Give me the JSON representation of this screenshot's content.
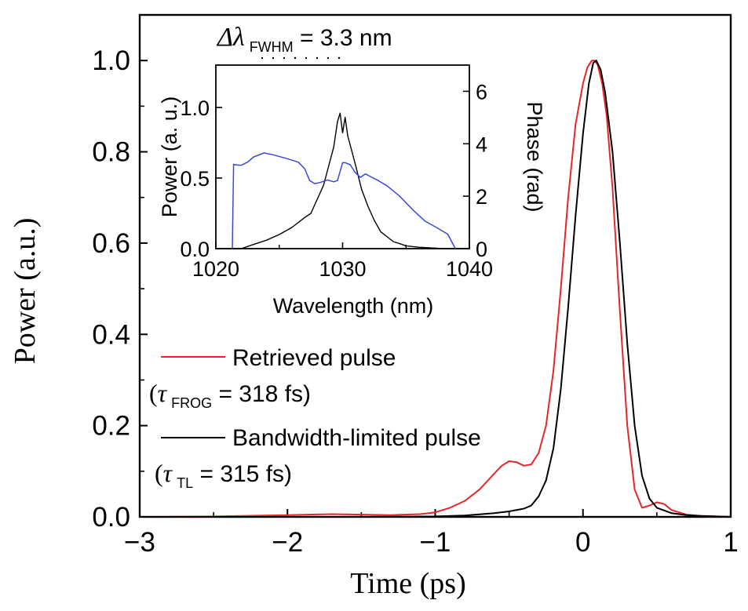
{
  "chart_data": [
    {
      "type": "line",
      "xlabel": "Time (ps)",
      "ylabel": "Power (a.u.)",
      "xlim": [
        -3,
        1
      ],
      "ylim": [
        0,
        1.1
      ],
      "xticks": [
        "−3",
        "−2",
        "−1",
        "0",
        "1"
      ],
      "yticks": [
        "0.0",
        "0.2",
        "0.4",
        "0.6",
        "0.8",
        "1.0"
      ],
      "series": [
        {
          "name": "Retrieved pulse",
          "color": "#e8262a",
          "x": [
            -3.0,
            -2.5,
            -2.0,
            -1.7,
            -1.5,
            -1.3,
            -1.1,
            -1.0,
            -0.9,
            -0.8,
            -0.7,
            -0.6,
            -0.55,
            -0.5,
            -0.45,
            -0.4,
            -0.35,
            -0.3,
            -0.25,
            -0.2,
            -0.15,
            -0.1,
            -0.05,
            0.0,
            0.03,
            0.06,
            0.08,
            0.1,
            0.13,
            0.16,
            0.2,
            0.25,
            0.3,
            0.35,
            0.4,
            0.45,
            0.5,
            0.55,
            0.6,
            0.7,
            0.8,
            0.9,
            1.0
          ],
          "y": [
            0.0,
            0.001,
            0.004,
            0.006,
            0.005,
            0.004,
            0.006,
            0.01,
            0.02,
            0.035,
            0.06,
            0.095,
            0.112,
            0.122,
            0.12,
            0.112,
            0.115,
            0.14,
            0.2,
            0.32,
            0.5,
            0.7,
            0.86,
            0.95,
            0.985,
            1.0,
            1.0,
            0.99,
            0.95,
            0.88,
            0.72,
            0.45,
            0.2,
            0.06,
            0.02,
            0.025,
            0.032,
            0.028,
            0.015,
            0.005,
            0.002,
            0.001,
            0.0
          ]
        },
        {
          "name": "Bandwidth-limited pulse",
          "color": "#000000",
          "x": [
            -3.0,
            -1.5,
            -1.0,
            -0.8,
            -0.6,
            -0.5,
            -0.4,
            -0.35,
            -0.3,
            -0.25,
            -0.2,
            -0.15,
            -0.1,
            -0.05,
            0.0,
            0.04,
            0.07,
            0.09,
            0.12,
            0.15,
            0.2,
            0.25,
            0.3,
            0.35,
            0.4,
            0.45,
            0.5,
            0.6,
            0.7,
            0.8,
            0.9,
            1.0
          ],
          "y": [
            0.0,
            0.0,
            0.001,
            0.003,
            0.008,
            0.012,
            0.018,
            0.025,
            0.045,
            0.08,
            0.15,
            0.28,
            0.46,
            0.66,
            0.84,
            0.95,
            0.995,
            1.0,
            0.98,
            0.93,
            0.8,
            0.6,
            0.38,
            0.2,
            0.09,
            0.04,
            0.02,
            0.008,
            0.004,
            0.002,
            0.001,
            0.0
          ]
        }
      ],
      "legend": {
        "placement": "middle-left",
        "entries": [
          {
            "label": "Retrieved pulse",
            "prefix": "(",
            "tau": "τ",
            "sub": "FROG",
            "value": " = 318 fs)"
          },
          {
            "label": "Bandwidth-limited pulse",
            "prefix": "(",
            "tau": "τ",
            "sub": "TL",
            "value": " = 315 fs)"
          }
        ]
      }
    },
    {
      "type": "line",
      "title": "inset",
      "xlabel": "Wavelength (nm)",
      "ylabel": "Power (a. u.)",
      "y2label": "Phase (rad)",
      "xlim": [
        1020,
        1040
      ],
      "ylim": [
        0,
        1.3
      ],
      "y2lim": [
        0,
        7
      ],
      "xticks": [
        "1020",
        "1030",
        "1040"
      ],
      "yticks": [
        "0.0",
        "0.5",
        "1.0"
      ],
      "y2ticks": [
        "0",
        "2",
        "4",
        "6"
      ],
      "annotation": {
        "symbol": "Δλ",
        "sub": "FWHM",
        "value": " = 3.3 nm"
      },
      "series": [
        {
          "name": "Power",
          "color": "#000000",
          "x": [
            1020.0,
            1022.0,
            1023.0,
            1024.0,
            1025.0,
            1026.0,
            1027.0,
            1027.5,
            1028.0,
            1028.5,
            1029.0,
            1029.3,
            1029.6,
            1029.8,
            1030.0,
            1030.2,
            1030.4,
            1030.7,
            1031.0,
            1031.5,
            1032.0,
            1032.5,
            1033.0,
            1034.0,
            1035.0,
            1036.0,
            1038.0,
            1040.0
          ],
          "y": [
            0.0,
            0.0,
            0.03,
            0.06,
            0.1,
            0.15,
            0.22,
            0.25,
            0.35,
            0.45,
            0.62,
            0.72,
            0.9,
            0.96,
            0.82,
            0.93,
            0.8,
            0.7,
            0.6,
            0.42,
            0.3,
            0.2,
            0.12,
            0.05,
            0.02,
            0.01,
            0.0,
            0.0
          ]
        },
        {
          "name": "Phase",
          "color": "#3c48d6",
          "axis": "y2",
          "x": [
            1021.3,
            1021.4,
            1021.5,
            1022.0,
            1022.5,
            1023.0,
            1023.8,
            1024.5,
            1025.5,
            1026.5,
            1027.0,
            1027.4,
            1027.8,
            1028.2,
            1028.8,
            1029.3,
            1029.6,
            1030.0,
            1030.2,
            1030.6,
            1031.0,
            1031.4,
            1031.8,
            1032.2,
            1032.8,
            1033.5,
            1034.5,
            1035.5,
            1036.5,
            1037.5,
            1038.3,
            1038.9
          ],
          "y": [
            0.0,
            3.22,
            3.2,
            3.18,
            3.3,
            3.5,
            3.65,
            3.58,
            3.45,
            3.3,
            3.05,
            2.6,
            2.48,
            2.52,
            2.62,
            2.55,
            2.6,
            3.28,
            3.28,
            3.2,
            2.9,
            2.72,
            2.85,
            2.75,
            2.6,
            2.4,
            2.0,
            1.5,
            1.05,
            0.78,
            0.55,
            0.0
          ]
        }
      ]
    }
  ]
}
